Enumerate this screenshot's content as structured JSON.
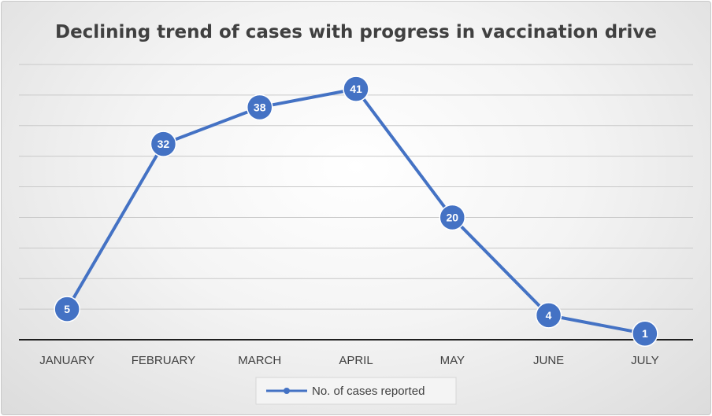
{
  "chart_data": {
    "type": "line",
    "title": "Declining trend of cases with progress in vaccination drive",
    "categories": [
      "JANUARY",
      "FEBRUARY",
      "MARCH",
      "APRIL",
      "MAY",
      "JUNE",
      "JULY"
    ],
    "series": [
      {
        "name": "No. of cases reported",
        "values": [
          5,
          32,
          38,
          41,
          20,
          4,
          1
        ],
        "color": "#4472C4"
      }
    ],
    "xlabel": "",
    "ylabel": "",
    "ylim": [
      0,
      45
    ],
    "gridlines": true,
    "y_tick_labels_shown": false,
    "data_labels": true,
    "legend_position": "bottom"
  }
}
